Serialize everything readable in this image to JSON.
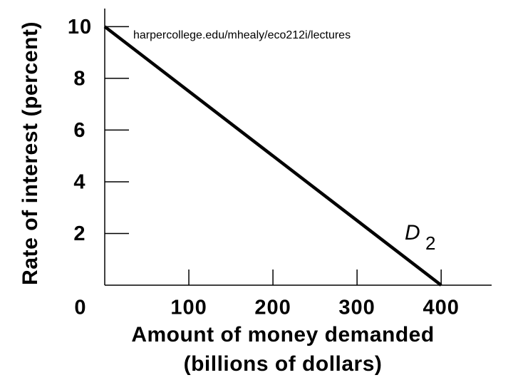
{
  "chart_data": {
    "type": "line",
    "annotation": "harpercollege.edu/mhealy/eco212i/lectures",
    "xlabel": [
      "Amount of money demanded",
      "(billions of dollars)"
    ],
    "ylabel": "Rate of interest (percent)",
    "x": [
      0,
      400
    ],
    "series": [
      {
        "name": "D",
        "subscript": "2",
        "color": "#000000",
        "values": [
          10,
          0
        ]
      }
    ],
    "xlim": [
      0,
      460
    ],
    "ylim": [
      0,
      10.7
    ],
    "xticks": [
      0,
      100,
      200,
      300,
      400
    ],
    "yticks": [
      2,
      4,
      6,
      8,
      10
    ],
    "grid": false
  }
}
